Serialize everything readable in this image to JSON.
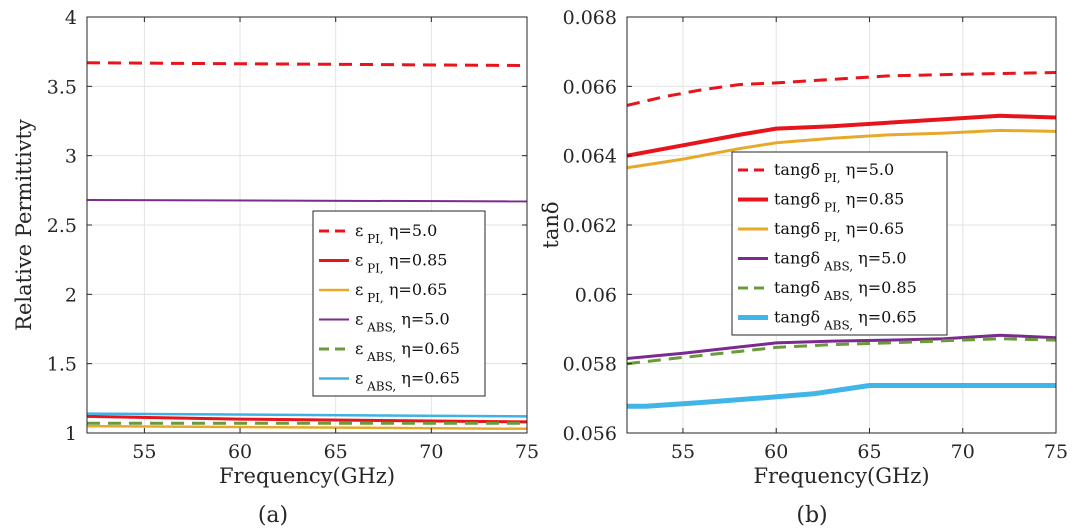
{
  "chart_data": [
    {
      "type": "line",
      "panel": "(a)",
      "caption": "(a)",
      "xlabel": "Frequency(GHz)",
      "ylabel": "Relative Permittivty",
      "xlim": [
        52,
        75
      ],
      "ylim": [
        1,
        4
      ],
      "xticks": [
        55,
        60,
        65,
        70,
        75
      ],
      "yticks": [
        1,
        1.5,
        2,
        2.5,
        3,
        3.5,
        4
      ],
      "yticklabels": [
        "1",
        "1.5",
        "2",
        "2.5",
        "3",
        "3.5",
        "4"
      ],
      "grid": true,
      "legend_position": "lower-right",
      "series": [
        {
          "sym": "ε",
          "sub": "PI",
          "eta": "η=5.0",
          "color": "#e8141b",
          "dash": "dashed",
          "width": 3,
          "x": [
            52,
            75
          ],
          "y": [
            3.67,
            3.65
          ]
        },
        {
          "sym": "ε",
          "sub": "PI",
          "eta": "η=0.85",
          "color": "#e8141b",
          "dash": "solid",
          "width": 3,
          "x": [
            52,
            60,
            75
          ],
          "y": [
            1.12,
            1.1,
            1.08
          ]
        },
        {
          "sym": "ε",
          "sub": "PI",
          "eta": "η=0.65",
          "color": "#e6a92a",
          "dash": "solid",
          "width": 2.5,
          "x": [
            52,
            75
          ],
          "y": [
            1.05,
            1.03
          ]
        },
        {
          "sym": "ε",
          "sub": "ABS",
          "eta": "η=5.0",
          "color": "#7b2a8f",
          "dash": "solid",
          "width": 2,
          "x": [
            52,
            75
          ],
          "y": [
            2.68,
            2.67
          ]
        },
        {
          "sym": "ε",
          "sub": "ABS",
          "eta": "η=0.65",
          "color": "#6a9a3a",
          "dash": "dashed",
          "width": 3,
          "x": [
            52,
            75
          ],
          "y": [
            1.07,
            1.07
          ]
        },
        {
          "sym": "ε",
          "sub": "ABS",
          "eta": "η=0.65",
          "color": "#3fb1e5",
          "dash": "solid",
          "width": 2.5,
          "x": [
            52,
            75
          ],
          "y": [
            1.14,
            1.12
          ]
        }
      ]
    },
    {
      "type": "line",
      "panel": "(b)",
      "caption": "(b)",
      "xlabel": "Frequency(GHz)",
      "ylabel": "tanδ",
      "xlim": [
        52,
        75
      ],
      "ylim": [
        0.056,
        0.068
      ],
      "xticks": [
        55,
        60,
        65,
        70,
        75
      ],
      "yticks": [
        0.056,
        0.058,
        0.06,
        0.062,
        0.064,
        0.066,
        0.068
      ],
      "yticklabels": [
        "0.056",
        "0.058",
        "0.06",
        "0.062",
        "0.064",
        "0.066",
        "0.068"
      ],
      "grid": true,
      "legend_position": "center",
      "series": [
        {
          "sym": "tangδ",
          "sub": "PI",
          "eta": "η=5.0",
          "color": "#e8141b",
          "dash": "dashed",
          "width": 3,
          "x": [
            52,
            54,
            56,
            58,
            60,
            63,
            66,
            70,
            75
          ],
          "y": [
            0.06545,
            0.0657,
            0.0659,
            0.06605,
            0.0661,
            0.0662,
            0.0663,
            0.06635,
            0.0664
          ]
        },
        {
          "sym": "tangδ",
          "sub": "PI",
          "eta": "η=0.85",
          "color": "#e8141b",
          "dash": "solid",
          "width": 4,
          "x": [
            52,
            55,
            58,
            60,
            63,
            66,
            69,
            72,
            75
          ],
          "y": [
            0.064,
            0.0643,
            0.0646,
            0.06478,
            0.06485,
            0.06495,
            0.06505,
            0.06515,
            0.0651
          ]
        },
        {
          "sym": "tangδ",
          "sub": "PI",
          "eta": "η=0.65",
          "color": "#e6a92a",
          "dash": "solid",
          "width": 3,
          "x": [
            52,
            55,
            58,
            60,
            63,
            66,
            69,
            72,
            75
          ],
          "y": [
            0.06365,
            0.0639,
            0.0642,
            0.06437,
            0.0645,
            0.0646,
            0.06465,
            0.06473,
            0.0647
          ]
        },
        {
          "sym": "tangδ",
          "sub": "ABS",
          "eta": "η=5.0",
          "color": "#7b2a8f",
          "dash": "solid",
          "width": 3,
          "x": [
            52,
            55,
            58,
            60,
            63,
            66,
            69,
            72,
            75
          ],
          "y": [
            0.05815,
            0.0583,
            0.05848,
            0.0586,
            0.05865,
            0.05868,
            0.05872,
            0.05882,
            0.05875
          ]
        },
        {
          "sym": "tangδ",
          "sub": "ABS",
          "eta": "η=0.85",
          "color": "#6a9a3a",
          "dash": "dashed",
          "width": 3,
          "x": [
            52,
            55,
            58,
            60,
            63,
            66,
            69,
            72,
            75
          ],
          "y": [
            0.058,
            0.05818,
            0.05835,
            0.05847,
            0.05855,
            0.0586,
            0.05866,
            0.05872,
            0.05868
          ]
        },
        {
          "sym": "tangδ",
          "sub": "ABS",
          "eta": "η=0.65",
          "color": "#41b5e8",
          "dash": "solid",
          "width": 5,
          "x": [
            52,
            53,
            56,
            59,
            62,
            65,
            68,
            72,
            75
          ],
          "y": [
            0.05677,
            0.05677,
            0.05688,
            0.057,
            0.05713,
            0.05737,
            0.05737,
            0.05737,
            0.05737
          ]
        }
      ]
    }
  ]
}
